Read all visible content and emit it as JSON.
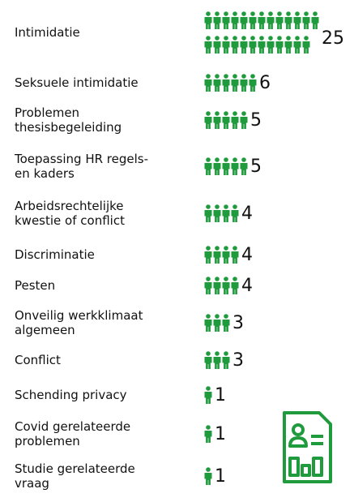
{
  "chart_data": {
    "type": "pictograph",
    "categories": [
      "Intimidatie",
      "Seksuele intimidatie",
      "Problemen thesisbegeleiding",
      "Toepassing HR regels- en kaders",
      "Arbeidsrechtelijke kwestie of conflict",
      "Discriminatie",
      "Pesten",
      "Onveilig werkklimaat algemeen",
      "Conflict",
      "Schending privacy",
      "Covid gerelateerde problemen",
      "Studie gerelateerde vraag"
    ],
    "values": [
      25,
      6,
      5,
      5,
      4,
      4,
      4,
      3,
      3,
      1,
      1,
      1
    ],
    "color": "#1f9a3c"
  }
}
